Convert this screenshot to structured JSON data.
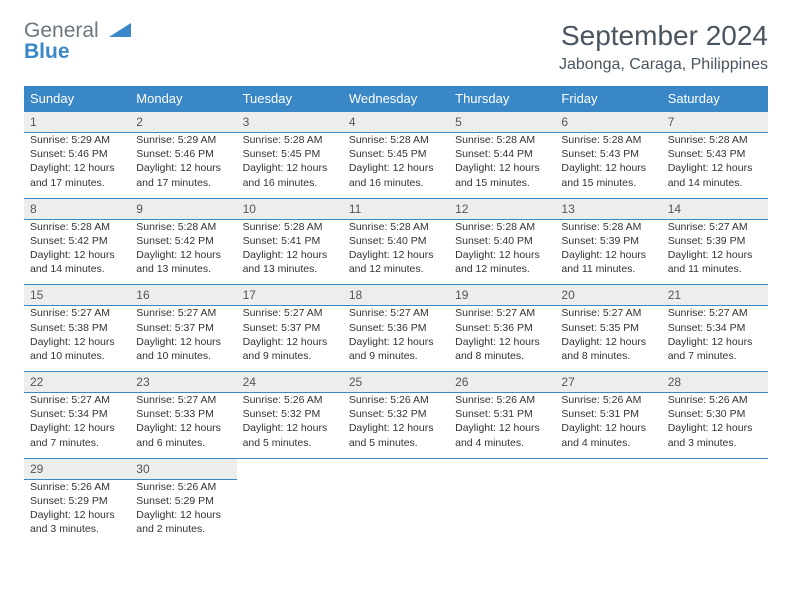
{
  "logo": {
    "part1": "General",
    "part2": "Blue"
  },
  "title": "September 2024",
  "location": "Jabonga, Caraga, Philippines",
  "colors": {
    "header_bg": "#3a87c8",
    "header_text": "#ffffff",
    "daynum_bg": "#eceded",
    "border": "#3a87c8",
    "body_text": "#333333",
    "title_text": "#4a5560"
  },
  "day_names": [
    "Sunday",
    "Monday",
    "Tuesday",
    "Wednesday",
    "Thursday",
    "Friday",
    "Saturday"
  ],
  "weeks": [
    [
      {
        "n": "1",
        "sr": "5:29 AM",
        "ss": "5:46 PM",
        "dl": "12 hours and 17 minutes."
      },
      {
        "n": "2",
        "sr": "5:29 AM",
        "ss": "5:46 PM",
        "dl": "12 hours and 17 minutes."
      },
      {
        "n": "3",
        "sr": "5:28 AM",
        "ss": "5:45 PM",
        "dl": "12 hours and 16 minutes."
      },
      {
        "n": "4",
        "sr": "5:28 AM",
        "ss": "5:45 PM",
        "dl": "12 hours and 16 minutes."
      },
      {
        "n": "5",
        "sr": "5:28 AM",
        "ss": "5:44 PM",
        "dl": "12 hours and 15 minutes."
      },
      {
        "n": "6",
        "sr": "5:28 AM",
        "ss": "5:43 PM",
        "dl": "12 hours and 15 minutes."
      },
      {
        "n": "7",
        "sr": "5:28 AM",
        "ss": "5:43 PM",
        "dl": "12 hours and 14 minutes."
      }
    ],
    [
      {
        "n": "8",
        "sr": "5:28 AM",
        "ss": "5:42 PM",
        "dl": "12 hours and 14 minutes."
      },
      {
        "n": "9",
        "sr": "5:28 AM",
        "ss": "5:42 PM",
        "dl": "12 hours and 13 minutes."
      },
      {
        "n": "10",
        "sr": "5:28 AM",
        "ss": "5:41 PM",
        "dl": "12 hours and 13 minutes."
      },
      {
        "n": "11",
        "sr": "5:28 AM",
        "ss": "5:40 PM",
        "dl": "12 hours and 12 minutes."
      },
      {
        "n": "12",
        "sr": "5:28 AM",
        "ss": "5:40 PM",
        "dl": "12 hours and 12 minutes."
      },
      {
        "n": "13",
        "sr": "5:28 AM",
        "ss": "5:39 PM",
        "dl": "12 hours and 11 minutes."
      },
      {
        "n": "14",
        "sr": "5:27 AM",
        "ss": "5:39 PM",
        "dl": "12 hours and 11 minutes."
      }
    ],
    [
      {
        "n": "15",
        "sr": "5:27 AM",
        "ss": "5:38 PM",
        "dl": "12 hours and 10 minutes."
      },
      {
        "n": "16",
        "sr": "5:27 AM",
        "ss": "5:37 PM",
        "dl": "12 hours and 10 minutes."
      },
      {
        "n": "17",
        "sr": "5:27 AM",
        "ss": "5:37 PM",
        "dl": "12 hours and 9 minutes."
      },
      {
        "n": "18",
        "sr": "5:27 AM",
        "ss": "5:36 PM",
        "dl": "12 hours and 9 minutes."
      },
      {
        "n": "19",
        "sr": "5:27 AM",
        "ss": "5:36 PM",
        "dl": "12 hours and 8 minutes."
      },
      {
        "n": "20",
        "sr": "5:27 AM",
        "ss": "5:35 PM",
        "dl": "12 hours and 8 minutes."
      },
      {
        "n": "21",
        "sr": "5:27 AM",
        "ss": "5:34 PM",
        "dl": "12 hours and 7 minutes."
      }
    ],
    [
      {
        "n": "22",
        "sr": "5:27 AM",
        "ss": "5:34 PM",
        "dl": "12 hours and 7 minutes."
      },
      {
        "n": "23",
        "sr": "5:27 AM",
        "ss": "5:33 PM",
        "dl": "12 hours and 6 minutes."
      },
      {
        "n": "24",
        "sr": "5:26 AM",
        "ss": "5:32 PM",
        "dl": "12 hours and 5 minutes."
      },
      {
        "n": "25",
        "sr": "5:26 AM",
        "ss": "5:32 PM",
        "dl": "12 hours and 5 minutes."
      },
      {
        "n": "26",
        "sr": "5:26 AM",
        "ss": "5:31 PM",
        "dl": "12 hours and 4 minutes."
      },
      {
        "n": "27",
        "sr": "5:26 AM",
        "ss": "5:31 PM",
        "dl": "12 hours and 4 minutes."
      },
      {
        "n": "28",
        "sr": "5:26 AM",
        "ss": "5:30 PM",
        "dl": "12 hours and 3 minutes."
      }
    ],
    [
      {
        "n": "29",
        "sr": "5:26 AM",
        "ss": "5:29 PM",
        "dl": "12 hours and 3 minutes."
      },
      {
        "n": "30",
        "sr": "5:26 AM",
        "ss": "5:29 PM",
        "dl": "12 hours and 2 minutes."
      },
      null,
      null,
      null,
      null,
      null
    ]
  ],
  "labels": {
    "sunrise": "Sunrise:",
    "sunset": "Sunset:",
    "daylight": "Daylight:"
  }
}
